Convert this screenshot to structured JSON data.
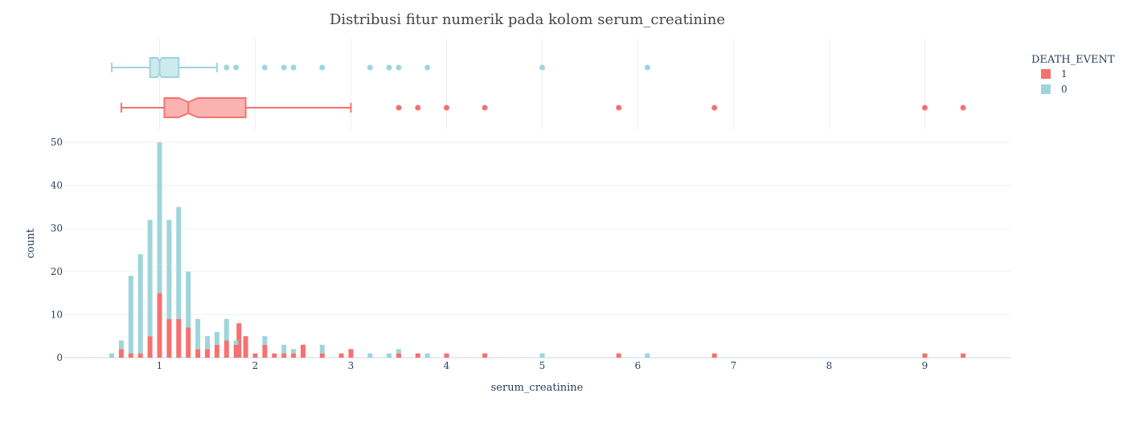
{
  "chart_data": {
    "type": "bar",
    "title": "Distribusi fitur numerik pada kolom serum_creatinine",
    "xlabel": "serum_creatinine",
    "ylabel": "count",
    "xlim": [
      0.0,
      9.9
    ],
    "ylim": [
      0,
      50
    ],
    "x_ticks": [
      1,
      2,
      3,
      4,
      5,
      6,
      7,
      8,
      9
    ],
    "y_ticks": [
      0,
      10,
      20,
      30,
      40,
      50
    ],
    "barmode": "stack",
    "grid": true,
    "legend": {
      "title": "DEATH_EVENT",
      "placement": "top-right"
    },
    "series": [
      {
        "name": "1",
        "color": "#f6716f",
        "points": [
          [
            0.6,
            2
          ],
          [
            0.7,
            1
          ],
          [
            0.8,
            1
          ],
          [
            0.9,
            5
          ],
          [
            1.0,
            15
          ],
          [
            1.1,
            9
          ],
          [
            1.2,
            9
          ],
          [
            1.3,
            7
          ],
          [
            1.4,
            2
          ],
          [
            1.5,
            2
          ],
          [
            1.6,
            3
          ],
          [
            1.7,
            4
          ],
          [
            1.8,
            3
          ],
          [
            1.83,
            8
          ],
          [
            1.9,
            5
          ],
          [
            2.0,
            1
          ],
          [
            2.1,
            3
          ],
          [
            2.2,
            1
          ],
          [
            2.3,
            1
          ],
          [
            2.4,
            1
          ],
          [
            2.5,
            3
          ],
          [
            2.7,
            1
          ],
          [
            2.9,
            1
          ],
          [
            3.0,
            2
          ],
          [
            3.5,
            1
          ],
          [
            3.7,
            1
          ],
          [
            4.0,
            1
          ],
          [
            4.4,
            1
          ],
          [
            5.8,
            1
          ],
          [
            6.8,
            1
          ],
          [
            9.0,
            1
          ],
          [
            9.4,
            1
          ]
        ]
      },
      {
        "name": "0",
        "color": "#9ed5db",
        "points": [
          [
            0.5,
            1
          ],
          [
            0.6,
            2
          ],
          [
            0.7,
            18
          ],
          [
            0.8,
            23
          ],
          [
            0.9,
            27
          ],
          [
            1.0,
            35
          ],
          [
            1.1,
            23
          ],
          [
            1.2,
            26
          ],
          [
            1.3,
            13
          ],
          [
            1.4,
            7
          ],
          [
            1.5,
            3
          ],
          [
            1.6,
            3
          ],
          [
            1.7,
            5
          ],
          [
            1.8,
            1
          ],
          [
            2.1,
            2
          ],
          [
            2.3,
            2
          ],
          [
            2.4,
            1
          ],
          [
            2.7,
            2
          ],
          [
            3.2,
            1
          ],
          [
            3.4,
            1
          ],
          [
            3.5,
            1
          ],
          [
            3.8,
            1
          ],
          [
            5.0,
            1
          ],
          [
            6.1,
            1
          ]
        ]
      }
    ],
    "box_plots": [
      {
        "name": "0",
        "color": "#9ed5db",
        "fill": "#cdeaee",
        "lower_fence": 0.5,
        "q1": 0.9,
        "median": 1.0,
        "q3": 1.2,
        "upper_fence": 1.6,
        "notch": [
          0.98,
          1.02
        ],
        "outliers": [
          1.7,
          1.8,
          2.1,
          2.3,
          2.4,
          2.7,
          3.2,
          3.4,
          3.5,
          3.8,
          5.0,
          6.1
        ]
      },
      {
        "name": "1",
        "color": "#f6716f",
        "fill": "#fbb3b2",
        "lower_fence": 0.6,
        "q1": 1.05,
        "median": 1.3,
        "q3": 1.9,
        "upper_fence": 3.0,
        "notch": [
          1.2,
          1.4
        ],
        "outliers": [
          3.5,
          3.7,
          4.0,
          4.4,
          5.8,
          6.8,
          9.0,
          9.4
        ]
      }
    ]
  }
}
